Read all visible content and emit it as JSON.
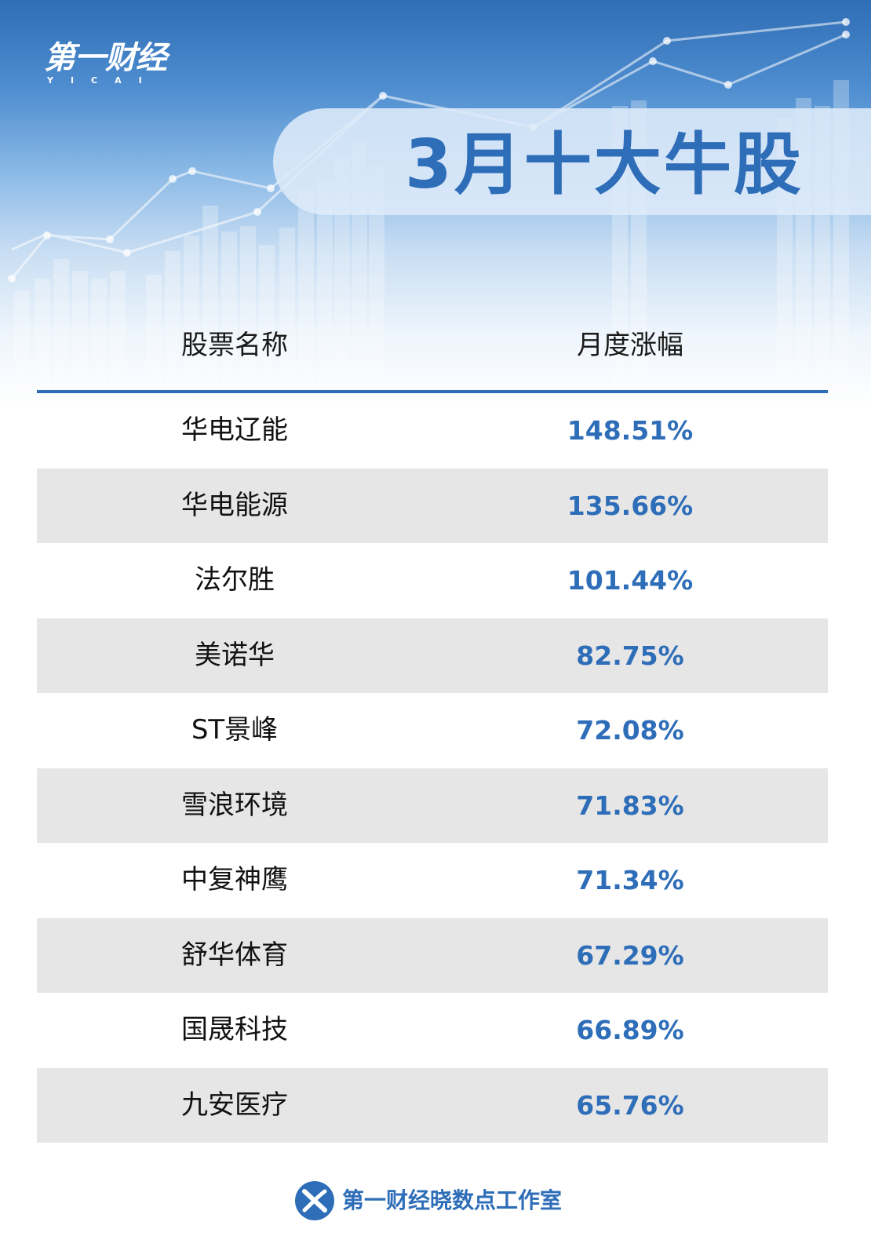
{
  "logo": {
    "chinese": "第一财经",
    "english": "YICAI"
  },
  "title": "3月十大牛股",
  "table": {
    "headers": {
      "name": "股票名称",
      "change": "月度涨幅"
    },
    "rows": [
      {
        "name": "华电辽能",
        "change": "148.51%"
      },
      {
        "name": "华电能源",
        "change": "135.66%"
      },
      {
        "name": "法尔胜",
        "change": "101.44%"
      },
      {
        "name": "美诺华",
        "change": "82.75%"
      },
      {
        "name": "ST景峰",
        "change": "72.08%"
      },
      {
        "name": "雪浪环境",
        "change": "71.83%"
      },
      {
        "name": "中复神鹰",
        "change": "71.34%"
      },
      {
        "name": "舒华体育",
        "change": "67.29%"
      },
      {
        "name": "国晟科技",
        "change": "66.89%"
      },
      {
        "name": "九安医疗",
        "change": "65.76%"
      }
    ]
  },
  "footer": {
    "text": "第一财经晓数点工作室",
    "icon": "studio-logo-icon"
  },
  "colors": {
    "accent": "#2e6db8",
    "row_alt": "#e6e6e6",
    "header_top": "#2f6db5"
  }
}
